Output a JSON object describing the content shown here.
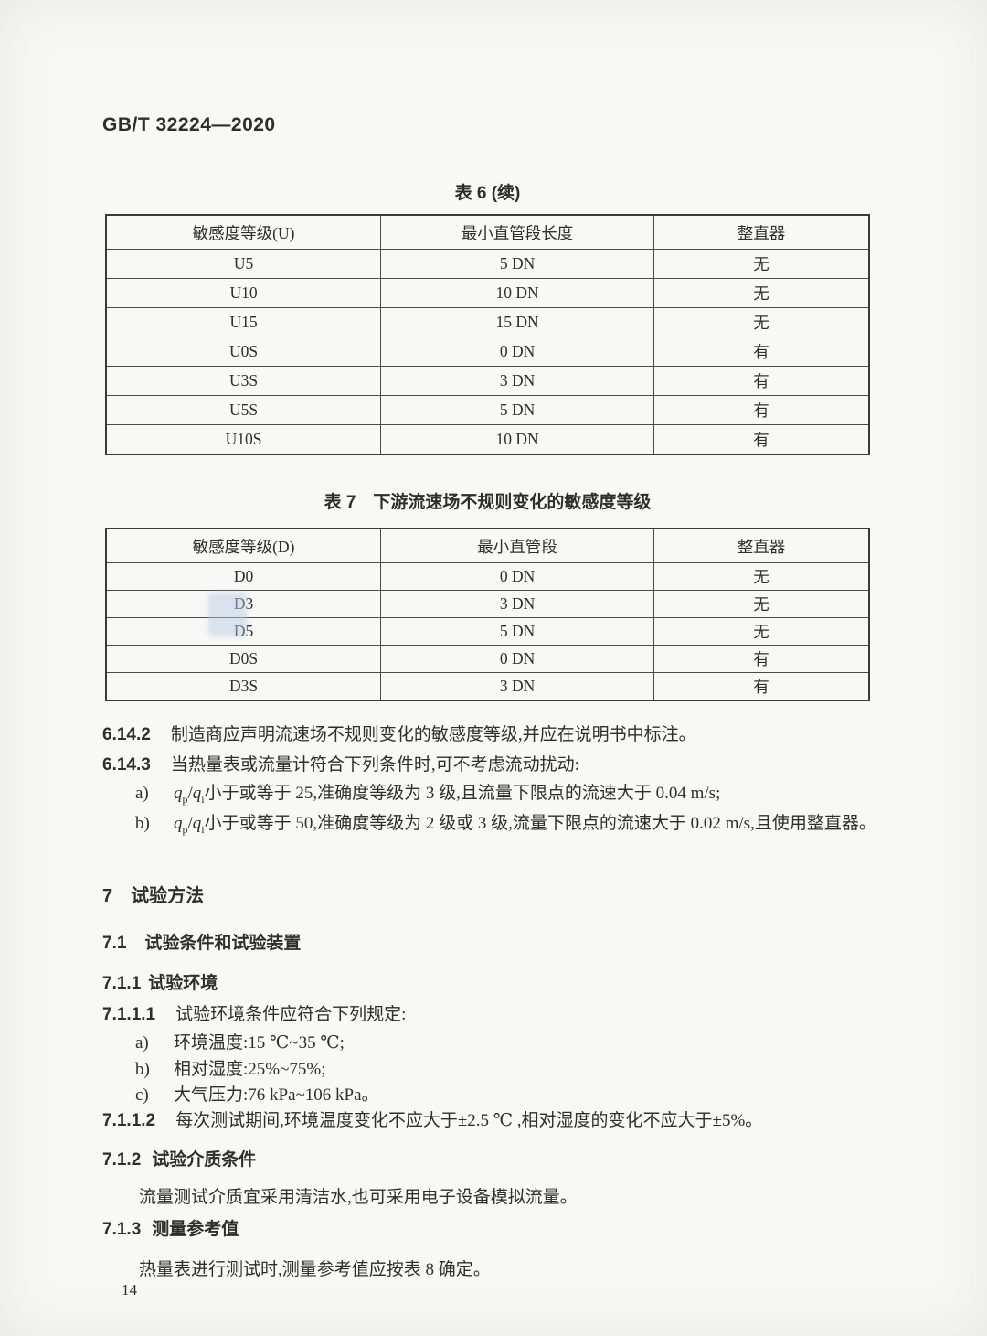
{
  "doc": {
    "standard_number": "GB/T 32224—2020",
    "page_number": "14"
  },
  "table6": {
    "title": "表 6 (续)",
    "headers": [
      "敏感度等级(U)",
      "最小直管段长度",
      "整直器"
    ],
    "rows": [
      [
        "U5",
        "5 DN",
        "无"
      ],
      [
        "U10",
        "10 DN",
        "无"
      ],
      [
        "U15",
        "15 DN",
        "无"
      ],
      [
        "U0S",
        "0 DN",
        "有"
      ],
      [
        "U3S",
        "3 DN",
        "有"
      ],
      [
        "U5S",
        "5 DN",
        "有"
      ],
      [
        "U10S",
        "10 DN",
        "有"
      ]
    ]
  },
  "table7": {
    "title": "表 7　下游流速场不规则变化的敏感度等级",
    "headers": [
      "敏感度等级(D)",
      "最小直管段",
      "整直器"
    ],
    "rows": [
      [
        "D0",
        "0 DN",
        "无"
      ],
      [
        "D3",
        "3 DN",
        "无"
      ],
      [
        "D5",
        "5 DN",
        "无"
      ],
      [
        "D0S",
        "0 DN",
        "有"
      ],
      [
        "D3S",
        "3 DN",
        "有"
      ]
    ]
  },
  "clauses": {
    "c6142": {
      "num": "6.14.2",
      "text": "制造商应声明流速场不规则变化的敏感度等级,并应在说明书中标注。"
    },
    "c6143": {
      "num": "6.14.3",
      "text": "当热量表或流量计符合下列条件时,可不考虑流动扰动:"
    },
    "c6143a": {
      "label": "a)",
      "formula": {
        "num": "q",
        "num_sub": "p",
        "sep": "/",
        "den": "q",
        "den_sub": "i"
      },
      "text": "小于或等于 25,准确度等级为 3 级,且流量下限点的流速大于 0.04 m/s;"
    },
    "c6143b": {
      "label": "b)",
      "formula": {
        "num": "q",
        "num_sub": "p",
        "sep": "/",
        "den": "q",
        "den_sub": "i"
      },
      "text": "小于或等于 50,准确度等级为 2 级或 3 级,流量下限点的流速大于 0.02 m/s,且使用整直器。"
    }
  },
  "section7": {
    "h7": {
      "num": "7",
      "title": "试验方法"
    },
    "h71": {
      "num": "7.1",
      "title": "试验条件和试验装置"
    },
    "h711": {
      "num": "7.1.1",
      "title": "试验环境"
    },
    "c7111": {
      "num": "7.1.1.1",
      "text": "试验环境条件应符合下列规定:"
    },
    "c7111a": {
      "label": "a)",
      "text": "环境温度:15 ℃~35 ℃;"
    },
    "c7111b": {
      "label": "b)",
      "text": "相对湿度:25%~75%;"
    },
    "c7111c": {
      "label": "c)",
      "text": "大气压力:76 kPa~106 kPa。"
    },
    "c7112": {
      "num": "7.1.1.2",
      "text": "每次测试期间,环境温度变化不应大于±2.5 ℃ ,相对湿度的变化不应大于±5%。"
    },
    "h712": {
      "num": "7.1.2",
      "title": "试验介质条件"
    },
    "p712": "流量测试介质宜采用清洁水,也可采用电子设备模拟流量。",
    "h713": {
      "num": "7.1.3",
      "title": "测量参考值"
    },
    "p713": "热量表进行测试时,测量参考值应按表 8 确定。"
  }
}
